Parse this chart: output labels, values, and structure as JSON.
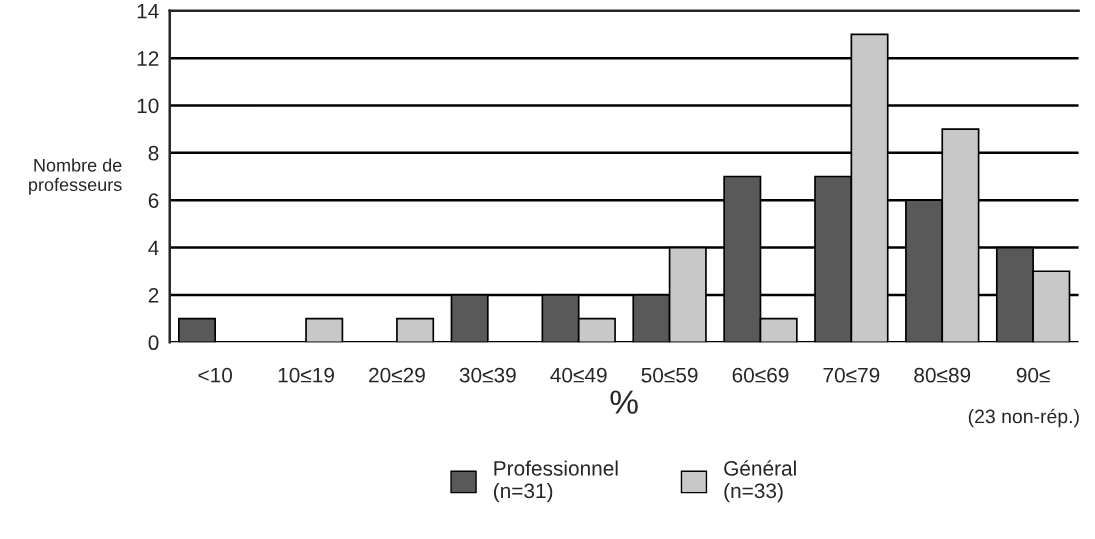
{
  "chart_data": {
    "type": "bar",
    "categories": [
      "<10",
      "10≤19",
      "20≤29",
      "30≤39",
      "40≤49",
      "50≤59",
      "60≤69",
      "70≤79",
      "80≤89",
      "90≤"
    ],
    "series": [
      {
        "name": "Professionnel\n(n=31)",
        "color": "#595959",
        "values": [
          1,
          0,
          0,
          2,
          2,
          2,
          7,
          7,
          6,
          4
        ]
      },
      {
        "name": "Général\n(n=33)",
        "color": "#c8c8c8",
        "values": [
          0,
          1,
          1,
          0,
          1,
          4,
          1,
          13,
          9,
          3
        ]
      }
    ],
    "xlabel": "%",
    "ylabel": "Nombre de\nprofesseurs",
    "ylim": [
      0,
      14
    ],
    "yticks": [
      0,
      2,
      4,
      6,
      8,
      10,
      12,
      14
    ],
    "grid": "y",
    "legend": "bottom",
    "annotations": [
      "(23 non-rép.)"
    ]
  }
}
